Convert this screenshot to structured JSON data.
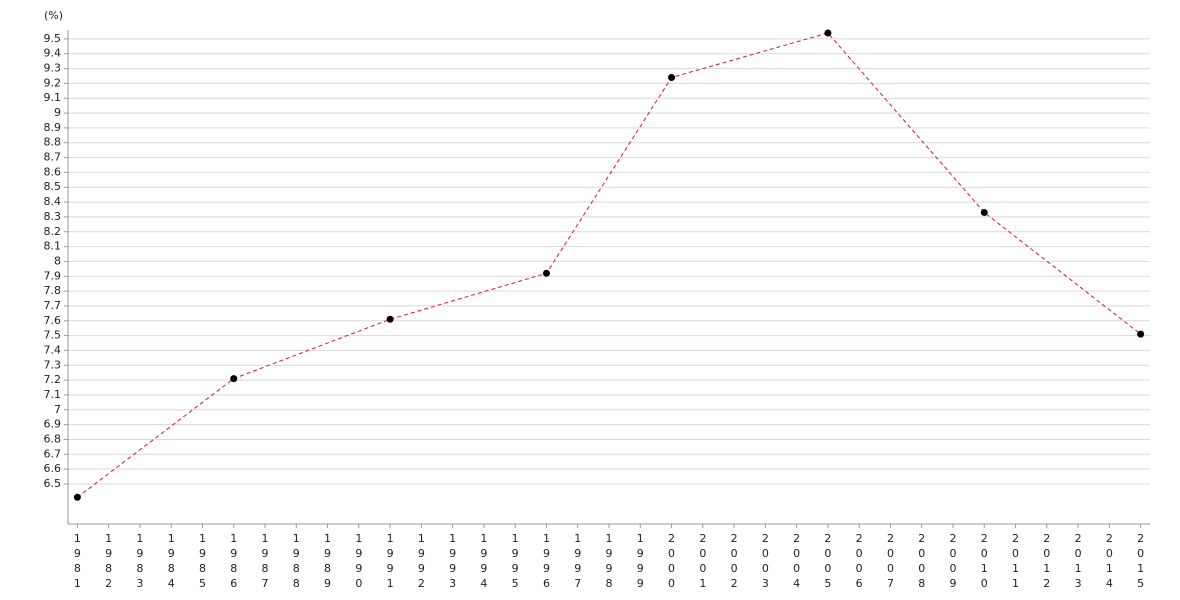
{
  "chart_data": {
    "type": "line",
    "y_label": "(%)",
    "x": [
      1981,
      1986,
      1991,
      1996,
      2000,
      2005,
      2010,
      2015
    ],
    "values": [
      6.41,
      7.21,
      7.61,
      7.92,
      9.24,
      9.54,
      8.33,
      7.51
    ],
    "color": "#dc143c",
    "marker_color": "#000000",
    "line_style": "dashed",
    "xlim": [
      1980.7,
      2015.3
    ],
    "xticks": [
      1981,
      1982,
      1983,
      1984,
      1985,
      1986,
      1987,
      1988,
      1989,
      1990,
      1991,
      1992,
      1993,
      1994,
      1995,
      1996,
      1997,
      1998,
      1999,
      2000,
      2001,
      2002,
      2003,
      2004,
      2005,
      2006,
      2007,
      2008,
      2009,
      2010,
      2011,
      2012,
      2013,
      2014,
      2015
    ],
    "ylim": [
      6.23,
      9.56
    ],
    "yticks": [
      6.5,
      6.6,
      6.7,
      6.8,
      6.9,
      7,
      7.1,
      7.2,
      7.3,
      7.4,
      7.5,
      7.6,
      7.7,
      7.8,
      7.9,
      8,
      8.1,
      8.2,
      8.3,
      8.4,
      8.5,
      8.6,
      8.7,
      8.8,
      8.9,
      9,
      9.1,
      9.2,
      9.3,
      9.4,
      9.5
    ],
    "grid": true
  }
}
